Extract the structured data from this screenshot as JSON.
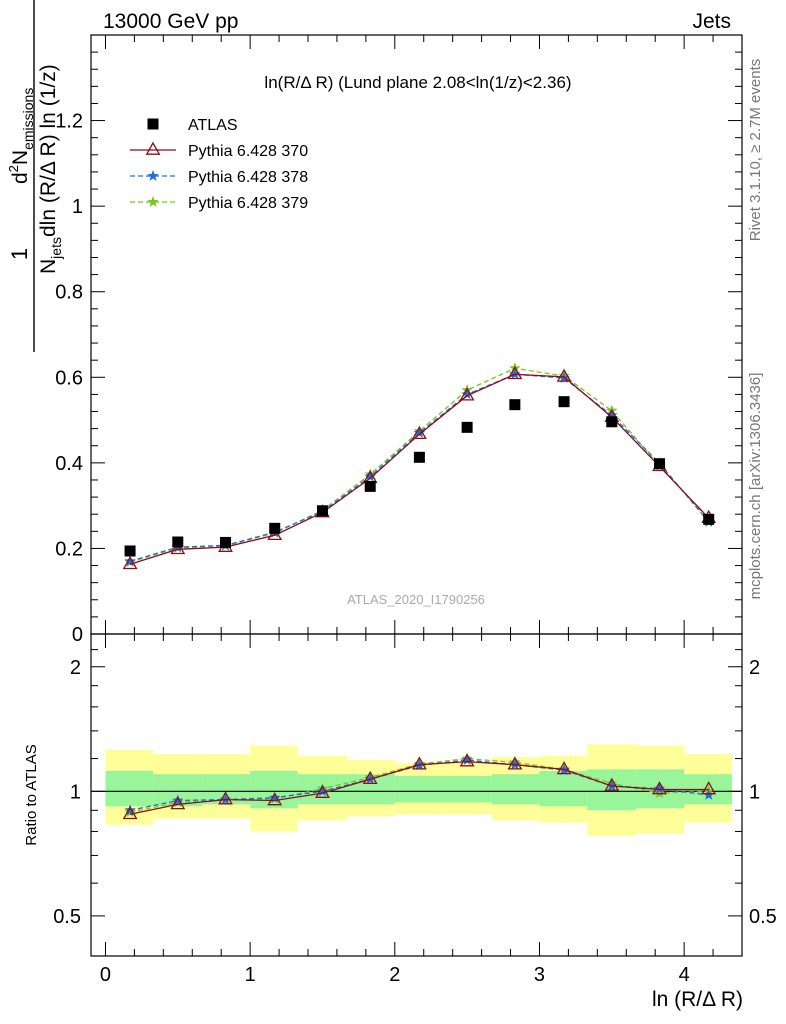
{
  "header": {
    "left": "13000 GeV pp",
    "right": "Jets"
  },
  "side_labels": {
    "rivet": "Rivet 3.1.10, ≥ 2.7M events",
    "mcplots": "mcplots.cern.ch [arXiv:1306.3436]"
  },
  "watermark": "ATLAS_2020_I1790256",
  "colors": {
    "atlas": "#000000",
    "p370": "#8b0d1e",
    "p378": "#1f6fd6",
    "p379": "#7ac51f",
    "band_inner": "#99f599",
    "band_outer": "#ffff99"
  },
  "chart_data": [
    {
      "type": "scatter",
      "panel": "main",
      "title": "ln(R/Δ R) (Lund plane 2.08<ln(1/z)<2.36)",
      "xlabel": "ln (R/Δ R)",
      "ylabel": "1 / N_jets dln (R/Δ R) ln (1/z) · d² N_emissions",
      "ylabel_parts": {
        "one": "1",
        "d2": "d",
        "two": "2",
        "N": "N",
        "emissions": "emissions",
        "Njets": "N",
        "jets": "jets",
        "den": "dln (R/Δ R) ln (1/z)"
      },
      "xlim": [
        -0.1,
        4.4
      ],
      "ylim": [
        0,
        1.4
      ],
      "yticks": [
        0.2,
        0.4,
        0.6,
        0.8,
        1,
        1.2
      ],
      "ytick_labels": [
        "0.2",
        "0.4",
        "0.6",
        "0.8",
        "1",
        "1.2"
      ],
      "ytick_zero_label": "0",
      "x": [
        0.17,
        0.5,
        0.83,
        1.17,
        1.5,
        1.83,
        2.17,
        2.5,
        2.83,
        3.17,
        3.5,
        3.83,
        4.17
      ],
      "legend": [
        "ATLAS",
        "Pythia 6.428 370",
        "Pythia 6.428 378",
        "Pythia 6.428 379"
      ],
      "legend_position": "top-left",
      "series": [
        {
          "name": "ATLAS",
          "style": "square",
          "values": [
            0.194,
            0.215,
            0.214,
            0.247,
            0.288,
            0.345,
            0.413,
            0.483,
            0.536,
            0.543,
            0.496,
            0.398,
            0.268
          ]
        },
        {
          "name": "Pythia 6.428 370",
          "style": "triangle",
          "values": [
            0.163,
            0.198,
            0.203,
            0.231,
            0.284,
            0.364,
            0.467,
            0.557,
            0.607,
            0.601,
            0.507,
            0.392,
            0.271
          ]
        },
        {
          "name": "Pythia 6.428 378",
          "style": "star-dashed",
          "values": [
            0.17,
            0.203,
            0.207,
            0.238,
            0.286,
            0.368,
            0.47,
            0.56,
            0.607,
            0.598,
            0.511,
            0.399,
            0.262
          ]
        },
        {
          "name": "Pythia 6.428 379",
          "style": "star-dashed",
          "values": [
            0.168,
            0.201,
            0.206,
            0.236,
            0.289,
            0.373,
            0.474,
            0.57,
            0.621,
            0.603,
            0.522,
            0.393,
            0.268
          ]
        }
      ]
    },
    {
      "type": "line",
      "panel": "ratio",
      "xlabel": "ln (R/Δ R)",
      "ylabel": "Ratio to ATLAS",
      "xlim": [
        -0.1,
        4.4
      ],
      "ylim": [
        0.4,
        2.4
      ],
      "log_y": true,
      "yticks": [
        0.5,
        1,
        2
      ],
      "ytick_labels": [
        "0.5",
        "1",
        "2"
      ],
      "xticks": [
        0,
        1,
        2,
        3,
        4
      ],
      "xtick_labels": [
        "0",
        "1",
        "2",
        "3",
        "4"
      ],
      "bin_edges": [
        0,
        0.33,
        0.67,
        1.0,
        1.33,
        1.67,
        2.0,
        2.33,
        2.67,
        3.0,
        3.33,
        3.67,
        4.0,
        4.33
      ],
      "band_inner": [
        [
          0.92,
          1.12
        ],
        [
          0.92,
          1.1
        ],
        [
          0.93,
          1.1
        ],
        [
          0.91,
          1.12
        ],
        [
          0.93,
          1.1
        ],
        [
          0.93,
          1.1
        ],
        [
          0.94,
          1.09
        ],
        [
          0.94,
          1.09
        ],
        [
          0.93,
          1.1
        ],
        [
          0.92,
          1.12
        ],
        [
          0.9,
          1.13
        ],
        [
          0.91,
          1.13
        ],
        [
          0.93,
          1.1
        ]
      ],
      "band_outer": [
        [
          0.83,
          1.26
        ],
        [
          0.86,
          1.23
        ],
        [
          0.86,
          1.23
        ],
        [
          0.8,
          1.29
        ],
        [
          0.85,
          1.22
        ],
        [
          0.87,
          1.19
        ],
        [
          0.88,
          1.17
        ],
        [
          0.88,
          1.17
        ],
        [
          0.85,
          1.21
        ],
        [
          0.84,
          1.22
        ],
        [
          0.78,
          1.3
        ],
        [
          0.79,
          1.29
        ],
        [
          0.84,
          1.23
        ]
      ],
      "series": [
        {
          "name": "Pythia 6.428 370",
          "values": [
            0.88,
            0.93,
            0.955,
            0.95,
            0.99,
            1.07,
            1.16,
            1.18,
            1.16,
            1.13,
            1.03,
            1.01,
            1.01
          ]
        },
        {
          "name": "Pythia 6.428 378",
          "values": [
            0.9,
            0.95,
            0.955,
            0.965,
            1.0,
            1.07,
            1.155,
            1.19,
            1.16,
            1.125,
            1.03,
            1.015,
            0.98
          ]
        },
        {
          "name": "Pythia 6.428 379",
          "values": [
            0.89,
            0.94,
            0.955,
            0.96,
            1.015,
            1.08,
            1.165,
            1.2,
            1.175,
            1.13,
            1.045,
            0.99,
            1.0
          ]
        }
      ]
    }
  ]
}
